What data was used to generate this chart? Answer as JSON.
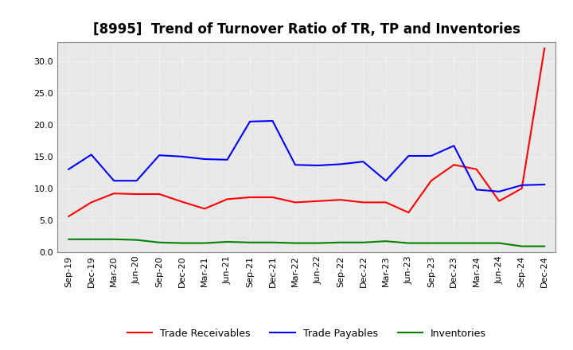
{
  "title": "[8995]  Trend of Turnover Ratio of TR, TP and Inventories",
  "labels": [
    "Sep-19",
    "Dec-19",
    "Mar-20",
    "Jun-20",
    "Sep-20",
    "Dec-20",
    "Mar-21",
    "Jun-21",
    "Sep-21",
    "Dec-21",
    "Mar-22",
    "Jun-22",
    "Sep-22",
    "Dec-22",
    "Mar-23",
    "Jun-23",
    "Sep-23",
    "Dec-23",
    "Mar-24",
    "Jun-24",
    "Sep-24",
    "Dec-24"
  ],
  "trade_receivables": [
    5.6,
    7.8,
    9.2,
    9.1,
    9.1,
    7.9,
    6.8,
    8.3,
    8.6,
    8.6,
    7.8,
    8.0,
    8.2,
    7.8,
    7.8,
    6.2,
    11.2,
    13.7,
    13.0,
    8.0,
    10.0,
    32.0
  ],
  "trade_payables": [
    13.0,
    15.3,
    11.2,
    11.2,
    15.2,
    15.0,
    14.6,
    14.5,
    20.5,
    20.6,
    13.7,
    13.6,
    13.8,
    14.2,
    11.2,
    15.1,
    15.1,
    16.7,
    9.8,
    9.5,
    10.5,
    10.6
  ],
  "inventories": [
    2.0,
    2.0,
    2.0,
    1.9,
    1.5,
    1.4,
    1.4,
    1.6,
    1.5,
    1.5,
    1.4,
    1.4,
    1.5,
    1.5,
    1.7,
    1.4,
    1.4,
    1.4,
    1.4,
    1.4,
    0.9,
    0.9
  ],
  "tr_color": "#ff0000",
  "tp_color": "#0000ff",
  "inv_color": "#008000",
  "tr_label": "Trade Receivables",
  "tp_label": "Trade Payables",
  "inv_label": "Inventories",
  "ylim": [
    0.0,
    33.0
  ],
  "yticks": [
    0.0,
    5.0,
    10.0,
    15.0,
    20.0,
    25.0,
    30.0
  ],
  "bg_color": "#ffffff",
  "plot_bg_color": "#e8e8e8",
  "grid_color": "#ffffff",
  "title_fontsize": 12,
  "legend_fontsize": 9,
  "axis_fontsize": 8,
  "linewidth": 1.5
}
